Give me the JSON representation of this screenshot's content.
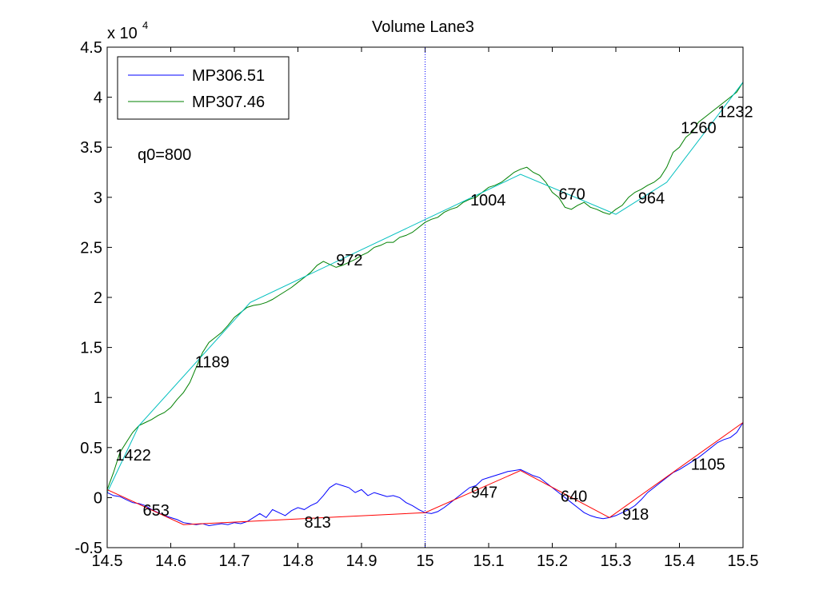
{
  "chart_data": {
    "type": "line",
    "title": "Volume Lane3",
    "xlabel": "",
    "ylabel": "",
    "y_multiplier": {
      "base": "x 10",
      "exponent": "4"
    },
    "xlim": [
      14.5,
      15.5
    ],
    "ylim": [
      -0.5,
      4.5
    ],
    "xticks": [
      "14.5",
      "14.6",
      "14.7",
      "14.8",
      "14.9",
      "15",
      "15.1",
      "15.2",
      "15.3",
      "15.4",
      "15.5"
    ],
    "yticks": [
      "-0.5",
      "0",
      "0.5",
      "1",
      "1.5",
      "2",
      "2.5",
      "3",
      "3.5",
      "4",
      "4.5"
    ],
    "grid": false,
    "legend": {
      "placement": "top-left"
    },
    "vertical_marker_x": 15.0,
    "note": "q0=800",
    "series": [
      {
        "name": "MP306.51",
        "color": "#0000ff",
        "points": [
          [
            14.5,
            0.05
          ],
          [
            14.51,
            0.02
          ],
          [
            14.52,
            0.01
          ],
          [
            14.53,
            -0.02
          ],
          [
            14.54,
            -0.05
          ],
          [
            14.55,
            -0.06
          ],
          [
            14.56,
            -0.08
          ],
          [
            14.57,
            -0.12
          ],
          [
            14.58,
            -0.15
          ],
          [
            14.59,
            -0.18
          ],
          [
            14.6,
            -0.2
          ],
          [
            14.61,
            -0.22
          ],
          [
            14.62,
            -0.25
          ],
          [
            14.63,
            -0.26
          ],
          [
            14.64,
            -0.27
          ],
          [
            14.65,
            -0.26
          ],
          [
            14.66,
            -0.28
          ],
          [
            14.67,
            -0.27
          ],
          [
            14.68,
            -0.26
          ],
          [
            14.69,
            -0.27
          ],
          [
            14.7,
            -0.25
          ],
          [
            14.71,
            -0.26
          ],
          [
            14.72,
            -0.24
          ],
          [
            14.73,
            -0.2
          ],
          [
            14.74,
            -0.16
          ],
          [
            14.75,
            -0.2
          ],
          [
            14.76,
            -0.12
          ],
          [
            14.77,
            -0.15
          ],
          [
            14.78,
            -0.18
          ],
          [
            14.79,
            -0.13
          ],
          [
            14.8,
            -0.1
          ],
          [
            14.81,
            -0.12
          ],
          [
            14.82,
            -0.08
          ],
          [
            14.83,
            -0.05
          ],
          [
            14.84,
            0.02
          ],
          [
            14.85,
            0.1
          ],
          [
            14.86,
            0.14
          ],
          [
            14.87,
            0.12
          ],
          [
            14.88,
            0.1
          ],
          [
            14.89,
            0.05
          ],
          [
            14.9,
            0.08
          ],
          [
            14.91,
            0.02
          ],
          [
            14.92,
            0.05
          ],
          [
            14.93,
            0.03
          ],
          [
            14.94,
            0.01
          ],
          [
            14.95,
            0.02
          ],
          [
            14.96,
            0.0
          ],
          [
            14.97,
            -0.05
          ],
          [
            14.98,
            -0.08
          ],
          [
            14.99,
            -0.12
          ],
          [
            15.0,
            -0.15
          ],
          [
            15.01,
            -0.16
          ],
          [
            15.02,
            -0.14
          ],
          [
            15.03,
            -0.1
          ],
          [
            15.04,
            -0.05
          ],
          [
            15.05,
            0.0
          ],
          [
            15.06,
            0.05
          ],
          [
            15.07,
            0.1
          ],
          [
            15.08,
            0.12
          ],
          [
            15.09,
            0.18
          ],
          [
            15.1,
            0.2
          ],
          [
            15.11,
            0.22
          ],
          [
            15.12,
            0.24
          ],
          [
            15.13,
            0.26
          ],
          [
            15.14,
            0.27
          ],
          [
            15.15,
            0.28
          ],
          [
            15.16,
            0.25
          ],
          [
            15.17,
            0.22
          ],
          [
            15.18,
            0.2
          ],
          [
            15.19,
            0.15
          ],
          [
            15.2,
            0.1
          ],
          [
            15.21,
            0.05
          ],
          [
            15.22,
            0.0
          ],
          [
            15.23,
            -0.05
          ],
          [
            15.24,
            -0.1
          ],
          [
            15.25,
            -0.15
          ],
          [
            15.26,
            -0.18
          ],
          [
            15.27,
            -0.2
          ],
          [
            15.28,
            -0.21
          ],
          [
            15.29,
            -0.2
          ],
          [
            15.3,
            -0.18
          ],
          [
            15.31,
            -0.15
          ],
          [
            15.32,
            -0.12
          ],
          [
            15.33,
            -0.08
          ],
          [
            15.34,
            -0.02
          ],
          [
            15.35,
            0.05
          ],
          [
            15.36,
            0.1
          ],
          [
            15.37,
            0.15
          ],
          [
            15.38,
            0.2
          ],
          [
            15.39,
            0.25
          ],
          [
            15.4,
            0.28
          ],
          [
            15.41,
            0.32
          ],
          [
            15.42,
            0.36
          ],
          [
            15.43,
            0.4
          ],
          [
            15.44,
            0.45
          ],
          [
            15.45,
            0.5
          ],
          [
            15.46,
            0.55
          ],
          [
            15.47,
            0.58
          ],
          [
            15.48,
            0.6
          ],
          [
            15.49,
            0.65
          ],
          [
            15.5,
            0.75
          ]
        ]
      },
      {
        "name": "MP307.46",
        "color": "#008000",
        "points": [
          [
            14.5,
            0.08
          ],
          [
            14.51,
            0.25
          ],
          [
            14.52,
            0.45
          ],
          [
            14.53,
            0.55
          ],
          [
            14.54,
            0.65
          ],
          [
            14.55,
            0.72
          ],
          [
            14.56,
            0.75
          ],
          [
            14.57,
            0.78
          ],
          [
            14.58,
            0.82
          ],
          [
            14.59,
            0.85
          ],
          [
            14.6,
            0.9
          ],
          [
            14.61,
            0.98
          ],
          [
            14.62,
            1.05
          ],
          [
            14.63,
            1.15
          ],
          [
            14.64,
            1.3
          ],
          [
            14.65,
            1.45
          ],
          [
            14.66,
            1.55
          ],
          [
            14.67,
            1.6
          ],
          [
            14.68,
            1.65
          ],
          [
            14.69,
            1.72
          ],
          [
            14.7,
            1.8
          ],
          [
            14.71,
            1.85
          ],
          [
            14.72,
            1.9
          ],
          [
            14.73,
            1.92
          ],
          [
            14.74,
            1.93
          ],
          [
            14.75,
            1.95
          ],
          [
            14.76,
            1.98
          ],
          [
            14.77,
            2.02
          ],
          [
            14.78,
            2.06
          ],
          [
            14.79,
            2.1
          ],
          [
            14.8,
            2.15
          ],
          [
            14.81,
            2.2
          ],
          [
            14.82,
            2.25
          ],
          [
            14.83,
            2.32
          ],
          [
            14.84,
            2.36
          ],
          [
            14.85,
            2.33
          ],
          [
            14.86,
            2.3
          ],
          [
            14.87,
            2.32
          ],
          [
            14.88,
            2.35
          ],
          [
            14.89,
            2.38
          ],
          [
            14.9,
            2.42
          ],
          [
            14.91,
            2.45
          ],
          [
            14.92,
            2.5
          ],
          [
            14.93,
            2.52
          ],
          [
            14.94,
            2.55
          ],
          [
            14.95,
            2.55
          ],
          [
            14.96,
            2.6
          ],
          [
            14.97,
            2.62
          ],
          [
            14.98,
            2.65
          ],
          [
            14.99,
            2.7
          ],
          [
            15.0,
            2.75
          ],
          [
            15.01,
            2.78
          ],
          [
            15.02,
            2.8
          ],
          [
            15.03,
            2.85
          ],
          [
            15.04,
            2.88
          ],
          [
            15.05,
            2.9
          ],
          [
            15.06,
            2.95
          ],
          [
            15.07,
            2.98
          ],
          [
            15.08,
            3.0
          ],
          [
            15.09,
            3.05
          ],
          [
            15.1,
            3.1
          ],
          [
            15.11,
            3.12
          ],
          [
            15.12,
            3.15
          ],
          [
            15.13,
            3.2
          ],
          [
            15.14,
            3.25
          ],
          [
            15.15,
            3.28
          ],
          [
            15.16,
            3.3
          ],
          [
            15.17,
            3.25
          ],
          [
            15.18,
            3.22
          ],
          [
            15.19,
            3.15
          ],
          [
            15.2,
            3.05
          ],
          [
            15.21,
            3.0
          ],
          [
            15.22,
            2.9
          ],
          [
            15.23,
            2.88
          ],
          [
            15.24,
            2.92
          ],
          [
            15.25,
            2.95
          ],
          [
            15.26,
            2.9
          ],
          [
            15.27,
            2.88
          ],
          [
            15.28,
            2.85
          ],
          [
            15.29,
            2.83
          ],
          [
            15.3,
            2.88
          ],
          [
            15.31,
            2.92
          ],
          [
            15.32,
            3.0
          ],
          [
            15.33,
            3.05
          ],
          [
            15.34,
            3.08
          ],
          [
            15.35,
            3.12
          ],
          [
            15.36,
            3.15
          ],
          [
            15.37,
            3.2
          ],
          [
            15.38,
            3.3
          ],
          [
            15.39,
            3.45
          ],
          [
            15.4,
            3.5
          ],
          [
            15.41,
            3.6
          ],
          [
            15.42,
            3.65
          ],
          [
            15.43,
            3.75
          ],
          [
            15.44,
            3.8
          ],
          [
            15.45,
            3.85
          ],
          [
            15.46,
            3.9
          ],
          [
            15.47,
            3.95
          ],
          [
            15.48,
            4.0
          ],
          [
            15.49,
            4.05
          ],
          [
            15.5,
            4.15
          ]
        ]
      }
    ],
    "fit_lines": [
      {
        "color": "#00bfbf",
        "points": [
          [
            14.5,
            0.05
          ],
          [
            14.55,
            0.72
          ],
          [
            14.725,
            1.95
          ],
          [
            15.15,
            3.23
          ],
          [
            15.3,
            2.83
          ],
          [
            15.38,
            3.15
          ],
          [
            15.5,
            4.15
          ]
        ]
      },
      {
        "color": "#ff0000",
        "points": [
          [
            14.5,
            0.08
          ],
          [
            14.62,
            -0.27
          ],
          [
            15.0,
            -0.15
          ],
          [
            15.15,
            0.27
          ],
          [
            15.29,
            -0.2
          ],
          [
            15.5,
            0.75
          ]
        ]
      }
    ],
    "annotations": [
      {
        "text": "1422",
        "x": 14.513,
        "y": 0.37
      },
      {
        "text": "1189",
        "x": 14.638,
        "y": 1.3
      },
      {
        "text": "972",
        "x": 14.86,
        "y": 2.32
      },
      {
        "text": "1004",
        "x": 15.071,
        "y": 2.92
      },
      {
        "text": "670",
        "x": 15.21,
        "y": 2.98
      },
      {
        "text": "964",
        "x": 15.335,
        "y": 2.94
      },
      {
        "text": "1260",
        "x": 15.402,
        "y": 3.64
      },
      {
        "text": "1232",
        "x": 15.46,
        "y": 3.8
      },
      {
        "text": "653",
        "x": 14.556,
        "y": -0.18
      },
      {
        "text": "813",
        "x": 14.81,
        "y": -0.3
      },
      {
        "text": "947",
        "x": 15.072,
        "y": 0.0
      },
      {
        "text": "640",
        "x": 15.213,
        "y": -0.04
      },
      {
        "text": "918",
        "x": 15.31,
        "y": -0.22
      },
      {
        "text": "1105",
        "x": 15.418,
        "y": 0.28
      }
    ]
  }
}
